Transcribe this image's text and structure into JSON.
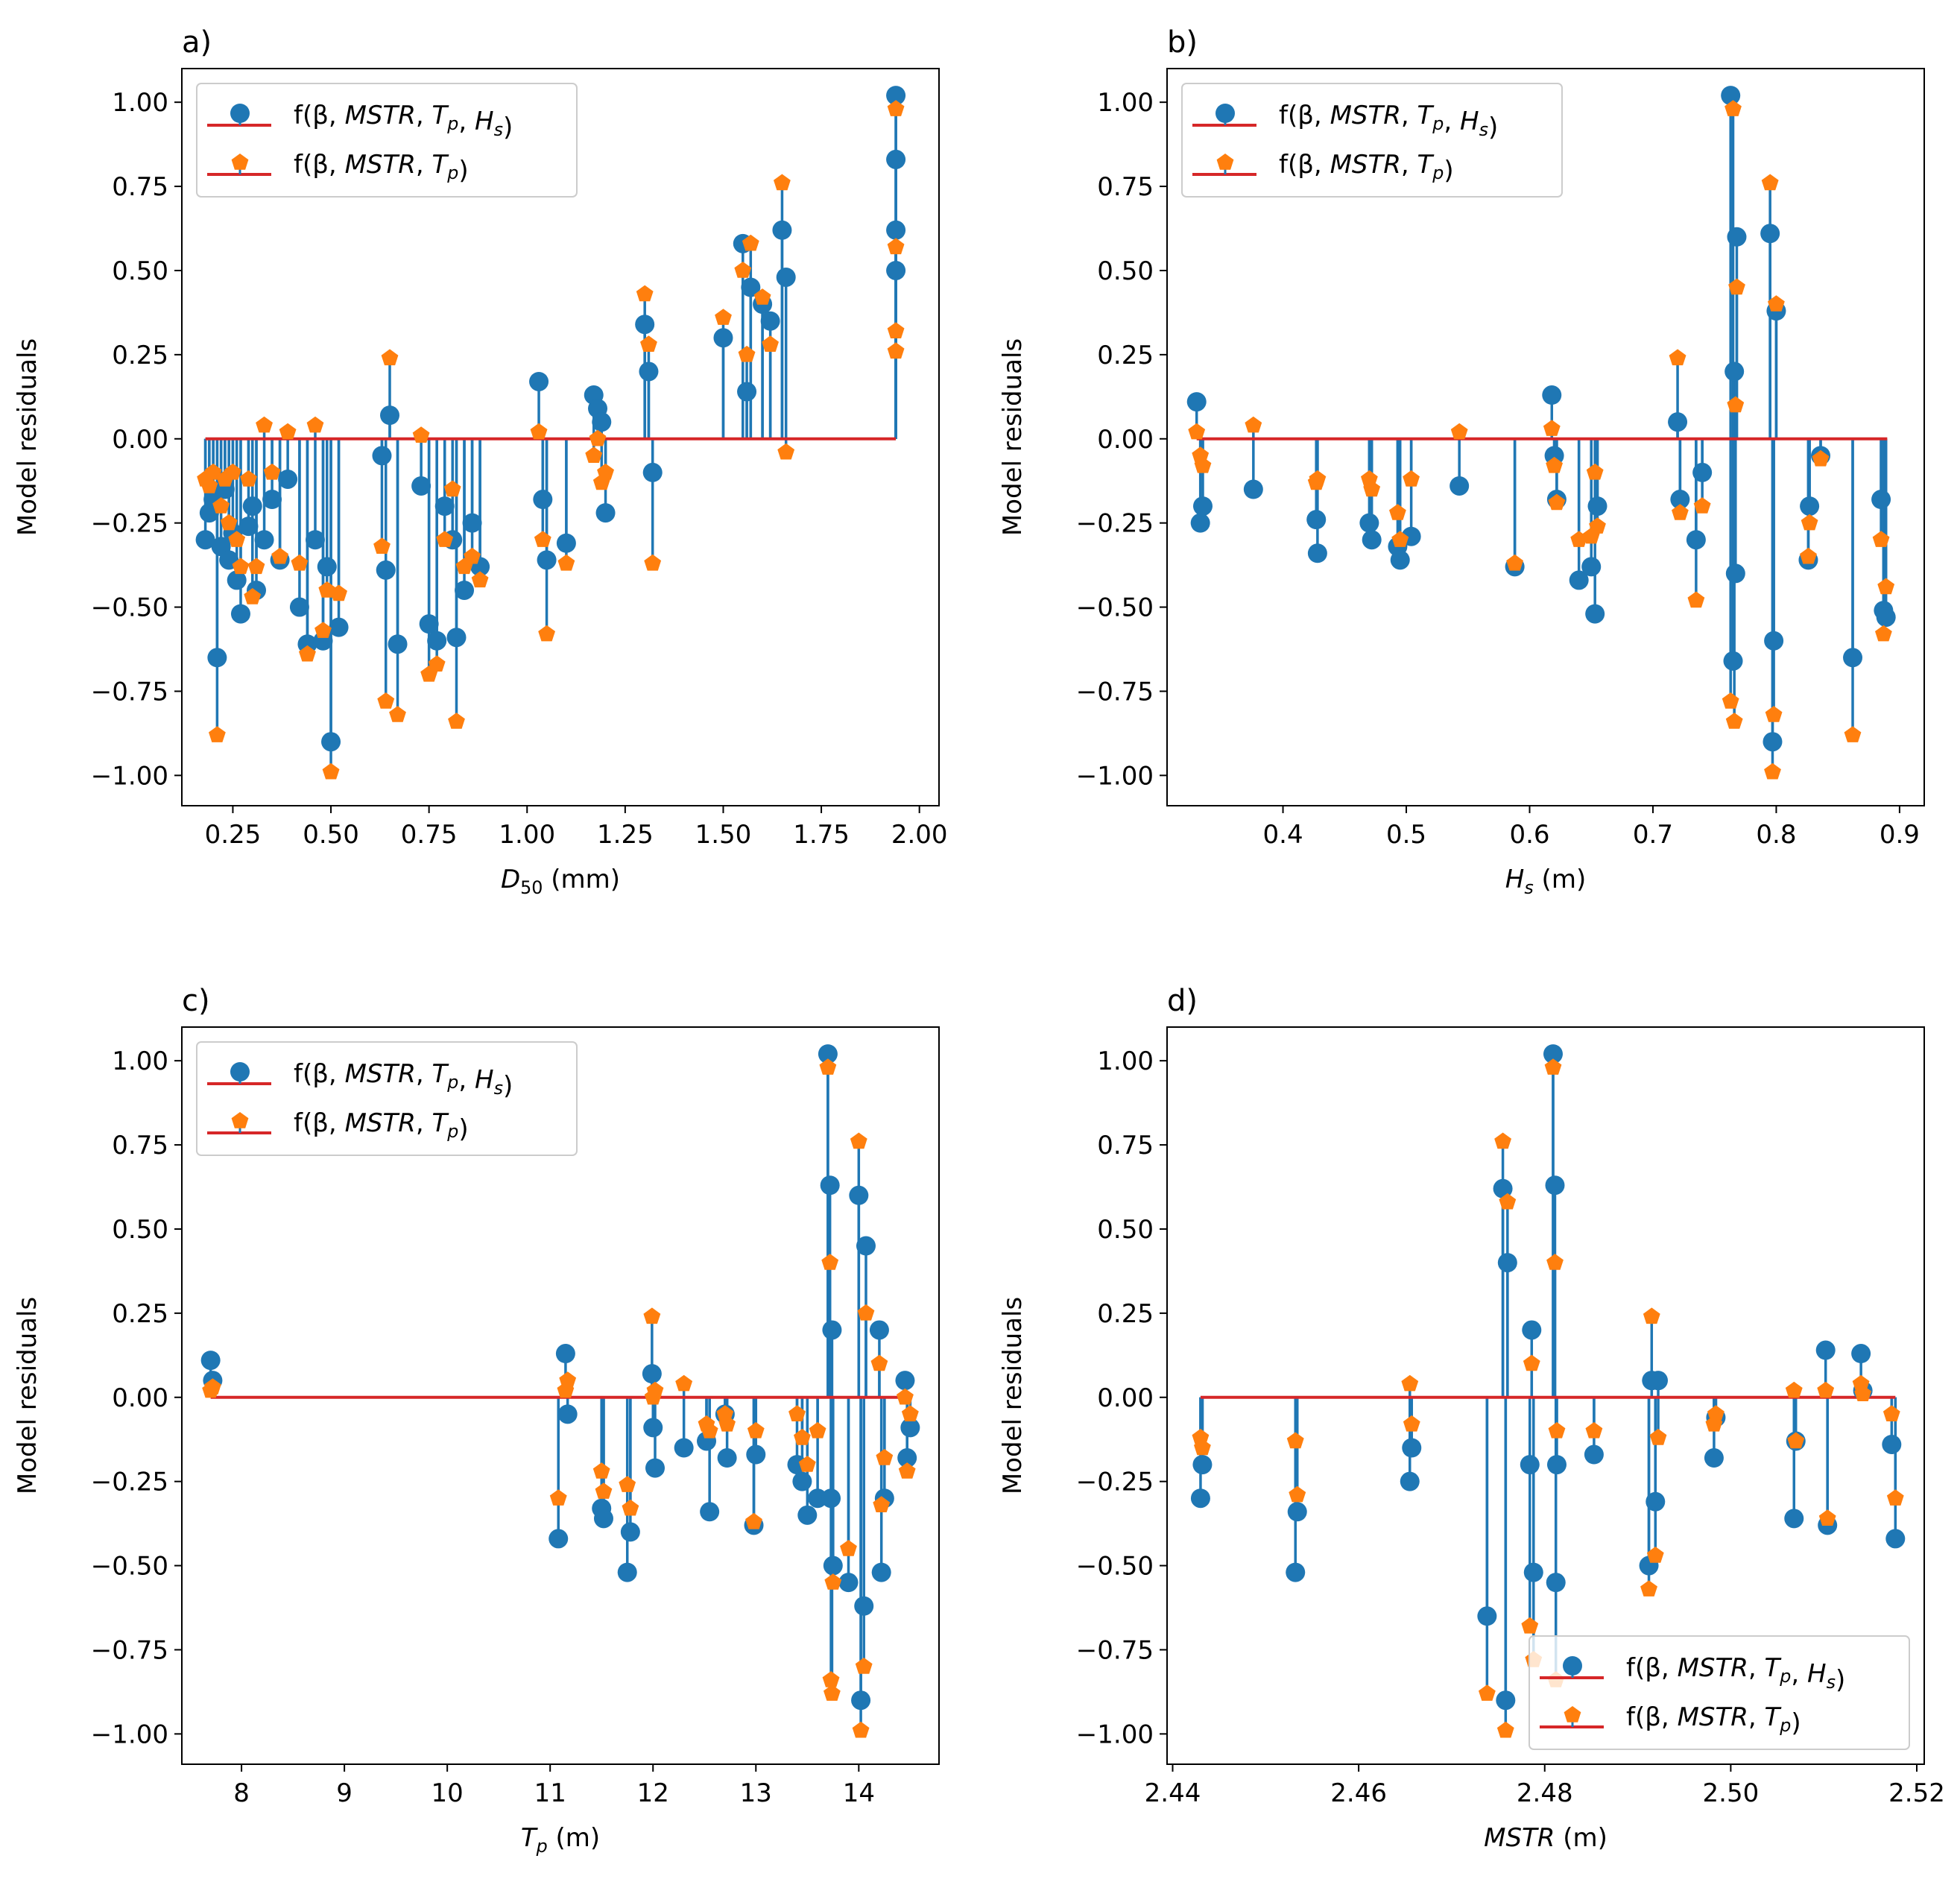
{
  "figure": {
    "colors": {
      "series1": "#1f77b4",
      "series2": "#ff7f0e",
      "baseline": "#d62728",
      "frame": "#000000"
    }
  },
  "chart_data": [
    {
      "panel_label": "a)",
      "type": "scatter",
      "subtype": "stem",
      "xlabel": "D50 (mm)",
      "xlabel_main": "D",
      "xlabel_sub": "50",
      "xlabel_unit": " (mm)",
      "ylabel": "Model residuals",
      "xlim": [
        0.12,
        2.05
      ],
      "ylim": [
        -1.09,
        1.1
      ],
      "xticks": [
        0.25,
        0.5,
        0.75,
        1.0,
        1.25,
        1.5,
        1.75,
        2.0
      ],
      "xtick_labels": [
        "0.25",
        "0.50",
        "0.75",
        "1.00",
        "1.25",
        "1.50",
        "1.75",
        "2.00"
      ],
      "yticks": [
        1.0,
        0.75,
        0.5,
        0.25,
        0.0,
        -0.25,
        -0.5,
        -0.75,
        -1.0
      ],
      "ytick_labels": [
        "1.00",
        "0.75",
        "0.50",
        "0.25",
        "0.00",
        "−0.25",
        "−0.50",
        "−0.75",
        "−1.00"
      ],
      "baseline": {
        "y": 0,
        "x_range": [
          0.18,
          1.94
        ]
      },
      "legend": {
        "placement": "upper-left",
        "entries": [
          {
            "marker": "circle",
            "prefix": "f(β, ",
            "label": "f(β, MSTR, Tp, Hs)"
          },
          {
            "marker": "pentagon",
            "prefix": "f(β, ",
            "label": "f(β, MSTR, Tp)"
          }
        ]
      },
      "series": [
        {
          "name": "f(β, MSTR, Tp, Hs)",
          "marker": "circle",
          "x": [
            0.18,
            0.19,
            0.2,
            0.21,
            0.22,
            0.23,
            0.24,
            0.25,
            0.26,
            0.27,
            0.29,
            0.3,
            0.31,
            0.33,
            0.35,
            0.37,
            0.39,
            0.42,
            0.44,
            0.46,
            0.48,
            0.49,
            0.5,
            0.52,
            0.63,
            0.64,
            0.65,
            0.67,
            0.73,
            0.75,
            0.77,
            0.79,
            0.81,
            0.82,
            0.84,
            0.86,
            0.88,
            1.03,
            1.04,
            1.05,
            1.1,
            1.17,
            1.18,
            1.19,
            1.2,
            1.3,
            1.31,
            1.32,
            1.5,
            1.55,
            1.56,
            1.57,
            1.6,
            1.62,
            1.65,
            1.66,
            1.94,
            1.94,
            1.94,
            1.94
          ],
          "y": [
            -0.3,
            -0.22,
            -0.18,
            -0.65,
            -0.32,
            -0.15,
            -0.36,
            -0.28,
            -0.42,
            -0.52,
            -0.26,
            -0.2,
            -0.45,
            -0.3,
            -0.18,
            -0.36,
            -0.12,
            -0.5,
            -0.61,
            -0.3,
            -0.6,
            -0.38,
            -0.9,
            -0.56,
            -0.05,
            -0.39,
            0.07,
            -0.61,
            -0.14,
            -0.55,
            -0.6,
            -0.2,
            -0.3,
            -0.59,
            -0.45,
            -0.25,
            -0.38,
            0.17,
            -0.18,
            -0.36,
            -0.31,
            0.13,
            0.09,
            0.05,
            -0.22,
            0.34,
            0.2,
            -0.1,
            0.3,
            0.58,
            0.14,
            0.45,
            0.4,
            0.35,
            0.62,
            0.48,
            1.02,
            0.83,
            0.62,
            0.5
          ]
        },
        {
          "name": "f(β, MSTR, Tp)",
          "marker": "pentagon",
          "x": [
            0.18,
            0.19,
            0.2,
            0.21,
            0.22,
            0.23,
            0.24,
            0.25,
            0.26,
            0.27,
            0.29,
            0.3,
            0.31,
            0.33,
            0.35,
            0.37,
            0.39,
            0.42,
            0.44,
            0.46,
            0.48,
            0.49,
            0.5,
            0.52,
            0.63,
            0.64,
            0.65,
            0.67,
            0.73,
            0.75,
            0.77,
            0.79,
            0.81,
            0.82,
            0.84,
            0.86,
            0.88,
            1.03,
            1.04,
            1.05,
            1.1,
            1.17,
            1.18,
            1.19,
            1.2,
            1.3,
            1.31,
            1.32,
            1.5,
            1.55,
            1.56,
            1.57,
            1.6,
            1.62,
            1.65,
            1.66,
            1.94,
            1.94,
            1.94,
            1.94
          ],
          "y": [
            -0.12,
            -0.14,
            -0.1,
            -0.88,
            -0.2,
            -0.12,
            -0.25,
            -0.1,
            -0.3,
            -0.38,
            -0.12,
            -0.47,
            -0.38,
            0.04,
            -0.1,
            -0.35,
            0.02,
            -0.37,
            -0.64,
            0.04,
            -0.57,
            -0.45,
            -0.99,
            -0.46,
            -0.32,
            -0.78,
            0.24,
            -0.82,
            0.01,
            -0.7,
            -0.67,
            -0.3,
            -0.15,
            -0.84,
            -0.38,
            -0.35,
            -0.42,
            0.02,
            -0.3,
            -0.58,
            -0.37,
            -0.05,
            0.0,
            -0.13,
            -0.1,
            0.43,
            0.28,
            -0.37,
            0.36,
            0.5,
            0.25,
            0.58,
            0.42,
            0.28,
            0.76,
            -0.04,
            0.98,
            0.57,
            0.32,
            0.26
          ]
        }
      ]
    },
    {
      "panel_label": "b)",
      "type": "scatter",
      "subtype": "stem",
      "xlabel": "Hs (m)",
      "xlabel_main": "H",
      "xlabel_sub": "s",
      "xlabel_unit": " (m)",
      "ylabel": "Model residuals",
      "xlim": [
        0.306,
        0.92
      ],
      "ylim": [
        -1.09,
        1.1
      ],
      "xticks": [
        0.4,
        0.5,
        0.6,
        0.7,
        0.8,
        0.9
      ],
      "xtick_labels": [
        "0.4",
        "0.5",
        "0.6",
        "0.7",
        "0.8",
        "0.9"
      ],
      "yticks": [
        1.0,
        0.75,
        0.5,
        0.25,
        0.0,
        -0.25,
        -0.5,
        -0.75,
        -1.0
      ],
      "ytick_labels": [
        "1.00",
        "0.75",
        "0.50",
        "0.25",
        "0.00",
        "−0.25",
        "−0.50",
        "−0.75",
        "−1.00"
      ],
      "baseline": {
        "y": 0,
        "x_range": [
          0.33,
          0.89
        ]
      },
      "legend": {
        "placement": "upper-left",
        "entries": [
          {
            "marker": "circle",
            "prefix": "f(β, ",
            "label": "f(β, MSTR, Tp, Hs)"
          },
          {
            "marker": "pentagon",
            "prefix": "f(β, ",
            "label": "f(β, MSTR, Tp)"
          }
        ]
      },
      "series": [
        {
          "name": "f(β, MSTR, Tp, Hs)",
          "marker": "circle",
          "x": [
            0.33,
            0.333,
            0.335,
            0.376,
            0.427,
            0.428,
            0.47,
            0.472,
            0.493,
            0.495,
            0.504,
            0.543,
            0.588,
            0.618,
            0.62,
            0.622,
            0.64,
            0.65,
            0.653,
            0.655,
            0.72,
            0.722,
            0.735,
            0.74,
            0.763,
            0.765,
            0.766,
            0.767,
            0.768,
            0.795,
            0.797,
            0.798,
            0.8,
            0.826,
            0.827,
            0.836,
            0.862,
            0.885,
            0.887,
            0.889
          ],
          "y": [
            0.11,
            -0.25,
            -0.2,
            -0.15,
            -0.24,
            -0.34,
            -0.25,
            -0.3,
            -0.32,
            -0.36,
            -0.29,
            -0.14,
            -0.38,
            0.13,
            -0.05,
            -0.18,
            -0.42,
            -0.38,
            -0.52,
            -0.2,
            0.05,
            -0.18,
            -0.3,
            -0.1,
            1.02,
            -0.66,
            0.2,
            -0.4,
            0.6,
            0.61,
            -0.9,
            -0.6,
            0.38,
            -0.36,
            -0.2,
            -0.05,
            -0.65,
            -0.18,
            -0.51,
            -0.53
          ]
        },
        {
          "name": "f(β, MSTR, Tp)",
          "marker": "pentagon",
          "x": [
            0.33,
            0.333,
            0.335,
            0.376,
            0.427,
            0.428,
            0.47,
            0.472,
            0.493,
            0.495,
            0.504,
            0.543,
            0.588,
            0.618,
            0.62,
            0.622,
            0.64,
            0.65,
            0.653,
            0.655,
            0.72,
            0.722,
            0.735,
            0.74,
            0.763,
            0.765,
            0.766,
            0.767,
            0.768,
            0.795,
            0.797,
            0.798,
            0.8,
            0.826,
            0.827,
            0.836,
            0.862,
            0.885,
            0.887,
            0.889
          ],
          "y": [
            0.02,
            -0.05,
            -0.08,
            0.04,
            -0.13,
            -0.12,
            -0.12,
            -0.15,
            -0.22,
            -0.3,
            -0.12,
            0.02,
            -0.37,
            0.03,
            -0.08,
            -0.19,
            -0.3,
            -0.29,
            -0.1,
            -0.26,
            0.24,
            -0.22,
            -0.48,
            -0.2,
            -0.78,
            0.98,
            -0.84,
            0.1,
            0.45,
            0.76,
            -0.99,
            -0.82,
            0.4,
            -0.35,
            -0.25,
            -0.06,
            -0.88,
            -0.3,
            -0.58,
            -0.44
          ]
        }
      ]
    },
    {
      "panel_label": "c)",
      "type": "scatter",
      "subtype": "stem",
      "xlabel": "Tp (m)",
      "xlabel_main": "T",
      "xlabel_sub": "p",
      "xlabel_unit": " (m)",
      "ylabel": "Model residuals",
      "xlim": [
        7.42,
        14.78
      ],
      "ylim": [
        -1.09,
        1.1
      ],
      "xticks": [
        8,
        9,
        10,
        11,
        12,
        13,
        14
      ],
      "xtick_labels": [
        "8",
        "9",
        "10",
        "11",
        "12",
        "13",
        "14"
      ],
      "yticks": [
        1.0,
        0.75,
        0.5,
        0.25,
        0.0,
        -0.25,
        -0.5,
        -0.75,
        -1.0
      ],
      "ytick_labels": [
        "1.00",
        "0.75",
        "0.50",
        "0.25",
        "0.00",
        "−0.25",
        "−0.50",
        "−0.75",
        "−1.00"
      ],
      "baseline": {
        "y": 0,
        "x_range": [
          7.7,
          14.5
        ]
      },
      "legend": {
        "placement": "upper-left",
        "entries": [
          {
            "marker": "circle",
            "prefix": "f(β, ",
            "label": "f(β, MSTR, Tp, Hs)"
          },
          {
            "marker": "pentagon",
            "prefix": "f(β, ",
            "label": "f(β, MSTR, Tp)"
          }
        ]
      },
      "series": [
        {
          "name": "f(β, MSTR, Tp, Hs)",
          "marker": "circle",
          "x": [
            7.7,
            7.72,
            11.08,
            11.15,
            11.17,
            11.5,
            11.52,
            11.75,
            11.78,
            11.99,
            12.0,
            12.02,
            12.3,
            12.52,
            12.55,
            12.7,
            12.72,
            12.98,
            13.0,
            13.4,
            13.45,
            13.5,
            13.6,
            13.7,
            13.72,
            13.73,
            13.74,
            13.75,
            13.9,
            14.0,
            14.02,
            14.05,
            14.07,
            14.2,
            14.22,
            14.25,
            14.45,
            14.47,
            14.5
          ],
          "y": [
            0.11,
            0.05,
            -0.42,
            0.13,
            -0.05,
            -0.33,
            -0.36,
            -0.52,
            -0.4,
            0.07,
            -0.09,
            -0.21,
            -0.15,
            -0.13,
            -0.34,
            -0.05,
            -0.18,
            -0.38,
            -0.17,
            -0.2,
            -0.25,
            -0.35,
            -0.3,
            1.02,
            0.63,
            -0.3,
            0.2,
            -0.5,
            -0.55,
            0.6,
            -0.9,
            -0.62,
            0.45,
            0.2,
            -0.52,
            -0.3,
            0.05,
            -0.18,
            -0.09
          ]
        },
        {
          "name": "f(β, MSTR, Tp)",
          "marker": "pentagon",
          "x": [
            7.7,
            7.72,
            11.08,
            11.15,
            11.17,
            11.5,
            11.52,
            11.75,
            11.78,
            11.99,
            12.0,
            12.02,
            12.3,
            12.52,
            12.55,
            12.7,
            12.72,
            12.98,
            13.0,
            13.4,
            13.45,
            13.5,
            13.6,
            13.7,
            13.72,
            13.73,
            13.74,
            13.75,
            13.9,
            14.0,
            14.02,
            14.05,
            14.07,
            14.2,
            14.22,
            14.25,
            14.45,
            14.47,
            14.5
          ],
          "y": [
            0.02,
            0.03,
            -0.3,
            0.02,
            0.05,
            -0.22,
            -0.28,
            -0.26,
            -0.33,
            0.24,
            0.0,
            0.02,
            0.04,
            -0.08,
            -0.1,
            -0.05,
            -0.08,
            -0.37,
            -0.1,
            -0.05,
            -0.12,
            -0.2,
            -0.1,
            0.98,
            0.4,
            -0.84,
            -0.88,
            -0.55,
            -0.45,
            0.76,
            -0.99,
            -0.8,
            0.25,
            0.1,
            -0.32,
            -0.18,
            0.0,
            -0.22,
            -0.05
          ]
        }
      ]
    },
    {
      "panel_label": "d)",
      "type": "scatter",
      "subtype": "stem",
      "xlabel": "MSTR (m)",
      "xlabel_main": "MSTR",
      "xlabel_sub": "",
      "xlabel_unit": " (m)",
      "ylabel": "Model residuals",
      "xlim": [
        2.4394,
        2.5208
      ],
      "ylim": [
        -1.09,
        1.1
      ],
      "xticks": [
        2.44,
        2.46,
        2.48,
        2.5,
        2.52
      ],
      "xtick_labels": [
        "2.44",
        "2.46",
        "2.48",
        "2.50",
        "2.52"
      ],
      "yticks": [
        1.0,
        0.75,
        0.5,
        0.25,
        0.0,
        -0.25,
        -0.5,
        -0.75,
        -1.0
      ],
      "ytick_labels": [
        "1.00",
        "0.75",
        "0.50",
        "0.25",
        "0.00",
        "−0.25",
        "−0.50",
        "−0.75",
        "−1.00"
      ],
      "baseline": {
        "y": 0,
        "x_range": [
          2.443,
          2.5177
        ]
      },
      "legend": {
        "placement": "lower-right",
        "entries": [
          {
            "marker": "circle",
            "prefix": "f(β, ",
            "label": "f(β, MSTR, Tp, Hs)"
          },
          {
            "marker": "pentagon",
            "prefix": "f(β, ",
            "label": "f(β, MSTR, Tp)"
          }
        ]
      },
      "series": [
        {
          "name": "f(β, MSTR, Tp, Hs)",
          "marker": "circle",
          "x": [
            2.443,
            2.4432,
            2.4532,
            2.4534,
            2.4655,
            2.4657,
            2.4738,
            2.4755,
            2.4758,
            2.476,
            2.4784,
            2.4786,
            2.4788,
            2.4809,
            2.4811,
            2.4812,
            2.4813,
            2.4853,
            2.4912,
            2.4915,
            2.4919,
            2.4922,
            2.4982,
            2.4984,
            2.5068,
            2.507,
            2.5102,
            2.5104,
            2.514,
            2.5142,
            2.5173,
            2.5177
          ],
          "y": [
            -0.3,
            -0.2,
            -0.52,
            -0.34,
            -0.25,
            -0.15,
            -0.65,
            0.62,
            -0.9,
            0.4,
            -0.2,
            0.2,
            -0.52,
            1.02,
            0.63,
            -0.55,
            -0.2,
            -0.17,
            -0.5,
            0.05,
            -0.31,
            0.05,
            -0.18,
            -0.06,
            -0.36,
            -0.13,
            0.14,
            -0.38,
            0.13,
            0.02,
            -0.14,
            -0.42
          ]
        },
        {
          "name": "f(β, MSTR, Tp)",
          "marker": "pentagon",
          "x": [
            2.443,
            2.4432,
            2.4532,
            2.4534,
            2.4655,
            2.4657,
            2.4738,
            2.4755,
            2.4758,
            2.476,
            2.4784,
            2.4786,
            2.4788,
            2.4809,
            2.4811,
            2.4812,
            2.4813,
            2.4853,
            2.4912,
            2.4915,
            2.4919,
            2.4922,
            2.4982,
            2.4984,
            2.5068,
            2.507,
            2.5102,
            2.5104,
            2.514,
            2.5142,
            2.5173,
            2.5177
          ],
          "y": [
            -0.12,
            -0.15,
            -0.13,
            -0.29,
            0.04,
            -0.08,
            -0.88,
            0.76,
            -0.99,
            0.58,
            -0.68,
            0.1,
            -0.78,
            0.98,
            0.4,
            -0.84,
            -0.1,
            -0.1,
            -0.57,
            0.24,
            -0.47,
            -0.12,
            -0.08,
            -0.05,
            0.02,
            -0.13,
            0.02,
            -0.36,
            0.04,
            0.01,
            -0.05,
            -0.3
          ]
        }
      ]
    }
  ]
}
